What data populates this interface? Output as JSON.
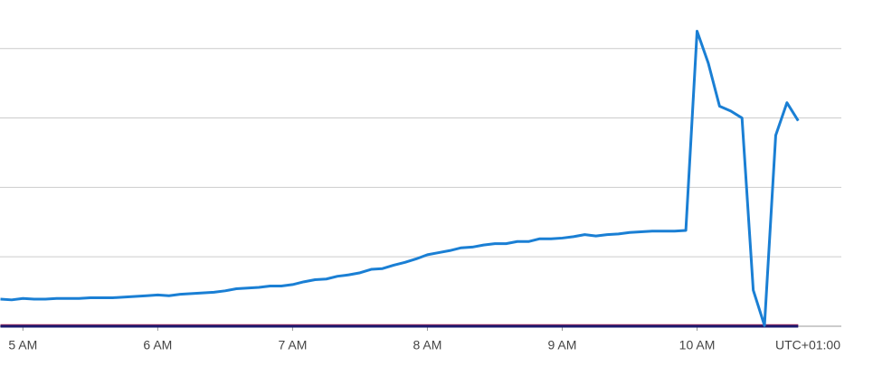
{
  "chart_data": {
    "type": "line",
    "timezone": "UTC+01:00",
    "xlim": [
      4.83,
      11.07
    ],
    "xticks": [
      {
        "value": 5,
        "label": "5 AM"
      },
      {
        "value": 6,
        "label": "6 AM"
      },
      {
        "value": 7,
        "label": "7 AM"
      },
      {
        "value": 8,
        "label": "8 AM"
      },
      {
        "value": 9,
        "label": "9 AM"
      },
      {
        "value": 10,
        "label": "10 AM"
      }
    ],
    "ylim": [
      0,
      4.4
    ],
    "ygrid": [
      0,
      1,
      2,
      3,
      4
    ],
    "grid": true,
    "series": [
      {
        "color": "#c3315c",
        "x": [
          4.8333,
          10.75
        ],
        "values": [
          0.01,
          0.01
        ]
      },
      {
        "color": "#1b1a6e",
        "x": [
          4.8333,
          10.75
        ],
        "values": [
          0,
          0
        ]
      },
      {
        "color": "#1a7fd4",
        "x": [
          4.8333,
          4.9167,
          5,
          5.0833,
          5.1667,
          5.25,
          5.3333,
          5.4167,
          5.5,
          5.5833,
          5.6667,
          5.75,
          5.8333,
          5.9167,
          6,
          6.0833,
          6.1667,
          6.25,
          6.3333,
          6.4167,
          6.5,
          6.5833,
          6.6667,
          6.75,
          6.8333,
          6.9167,
          7,
          7.0833,
          7.1667,
          7.25,
          7.3333,
          7.4167,
          7.5,
          7.5833,
          7.6667,
          7.75,
          7.8333,
          7.9167,
          8,
          8.0833,
          8.1667,
          8.25,
          8.3333,
          8.4167,
          8.5,
          8.5833,
          8.6667,
          8.75,
          8.8333,
          8.9167,
          9,
          9.0833,
          9.1667,
          9.25,
          9.3333,
          9.4167,
          9.5,
          9.5833,
          9.6667,
          9.75,
          9.8333,
          9.9167,
          10,
          10.0833,
          10.1667,
          10.25,
          10.3333,
          10.4167,
          10.5,
          10.5833,
          10.6667,
          10.75
        ],
        "values": [
          0.39,
          0.38,
          0.4,
          0.39,
          0.39,
          0.4,
          0.4,
          0.4,
          0.41,
          0.41,
          0.41,
          0.42,
          0.43,
          0.44,
          0.45,
          0.44,
          0.46,
          0.47,
          0.48,
          0.49,
          0.51,
          0.54,
          0.55,
          0.56,
          0.58,
          0.58,
          0.6,
          0.64,
          0.67,
          0.68,
          0.72,
          0.74,
          0.77,
          0.82,
          0.83,
          0.88,
          0.92,
          0.97,
          1.03,
          1.06,
          1.09,
          1.13,
          1.14,
          1.17,
          1.19,
          1.19,
          1.22,
          1.22,
          1.26,
          1.26,
          1.27,
          1.29,
          1.32,
          1.3,
          1.32,
          1.33,
          1.35,
          1.36,
          1.37,
          1.37,
          1.37,
          1.38,
          4.25,
          3.79,
          3.17,
          3.1,
          3.0,
          0.52,
          0.01,
          2.75,
          3.22,
          2.96
        ]
      }
    ]
  }
}
